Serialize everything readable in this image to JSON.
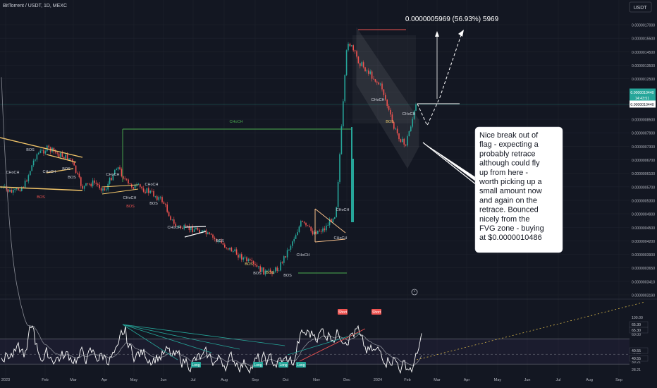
{
  "header": {
    "symbol_line": "BitTorrent / USDT, 1D, MEXC"
  },
  "currency_button": "USDT",
  "measure_label": "0.0000005969 (56.93%) 5969",
  "annotation": {
    "lines": [
      "Nice break out of",
      "flag - expecting a",
      "probably retrace",
      "although could fly",
      "up from here -",
      "worth picking up a",
      "small amount now",
      "and again on the",
      "retrace. Bounced",
      "nicely from the",
      "FVG zone - buying",
      "at $0.0000010486"
    ]
  },
  "price_badges": {
    "current_price": "0.0000010440",
    "countdown": "14:43:51",
    "level_price": "0.0000010440"
  },
  "rsi_badges": [
    "65.30",
    "65.30",
    "40.55",
    "40.55"
  ],
  "replay_icon": "clock-icon",
  "colors": {
    "background": "#131722",
    "up": "#26a69a",
    "down": "#ef5350",
    "structure": "#4caf50",
    "label_yellow": "#f0d070",
    "label_white": "#d1d4dc",
    "label_red": "#ef5350",
    "label_green": "#4caf50",
    "wedge": "#f5c76a",
    "rsi_line": "#ffffff",
    "rsi_ma": "#8a8d96"
  },
  "chart_data": [
    {
      "type": "line",
      "log_scale": true,
      "ylim": [
        3.19e-07,
        1.7e-06
      ],
      "y_ticks": [
        "0.0000017000",
        "0.0000015500",
        "0.0000014500",
        "0.0000013500",
        "0.0000012500",
        "0.0000011500",
        "0.0000009550",
        "0.0000008500",
        "0.0000007900",
        "0.0000007300",
        "0.0000006700",
        "0.0000006100",
        "0.0000005700",
        "0.0000005300",
        "0.0000004900",
        "0.0000004500",
        "0.0000004200",
        "0.0000003900",
        "0.0000003650",
        "0.0000003410",
        "0.0000003190"
      ],
      "x_ticks": [
        "2023",
        "Feb",
        "Mar",
        "Apr",
        "May",
        "Jun",
        "Jul",
        "Aug",
        "Sep",
        "Oct",
        "Nov",
        "Dec",
        "2024",
        "Feb",
        "Mar",
        "Apr",
        "May",
        "Jun",
        "Jul",
        "Aug",
        "Sep"
      ],
      "series": [
        {
          "values": [
            6.2e-07,
            6e-07,
            6.3e-07,
            7.6e-07,
            7.9e-07,
            7.6e-07,
            7.4e-07,
            6.2e-07,
            6.4e-07,
            6.1e-07,
            7.1e-07,
            6.3e-07,
            6.2e-07,
            6e-07,
            5.7e-07,
            4.9e-07,
            4.8e-07,
            4.8e-07,
            4.6e-07,
            4.4e-07,
            4.2e-07,
            4e-07,
            3.8e-07,
            3.65e-07,
            3.75e-07,
            4.3e-07,
            5e-07,
            4.7e-07,
            4.8e-07,
            5.3e-07,
            1.55e-06,
            1.35e-06,
            1.25e-06,
            1.15e-06,
            9e-07,
            8e-07,
            1.044e-06
          ]
        }
      ],
      "structure_labels": [
        "CHoCH",
        "BOS",
        "CHoCH",
        "BOS",
        "BOS",
        "CHoCH",
        "CHoCH",
        "CHoCH",
        "BOS",
        "BOS",
        "CHoCH",
        "BOS",
        "BOS",
        "BOS",
        "BOS",
        "BOS",
        "BOS",
        "CHoCH",
        "CHoCH",
        "CHoCH",
        "CHoCH",
        "CHoCH",
        "BOS",
        "CHoCH"
      ]
    },
    {
      "type": "line",
      "ylim": [
        28.21,
        100.0
      ],
      "y_ticks": [
        "100.00",
        "60.00",
        "40.55",
        "39.21",
        "28.21"
      ],
      "bands": [
        65.3,
        40.55
      ],
      "signals": [
        "Short",
        "Short",
        "Long",
        "Long",
        "Long",
        "Long"
      ]
    }
  ]
}
